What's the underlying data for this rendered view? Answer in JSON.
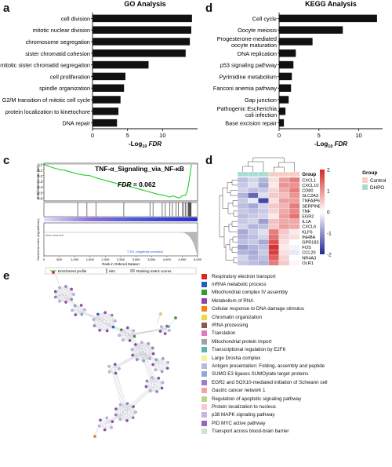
{
  "panels": {
    "a": {
      "letter": "a",
      "title": "GO Analysis",
      "xlabel_prefix": "-Log",
      "xlabel_sub": "10",
      "xlabel_suffix": "FDR",
      "chart_data": {
        "type": "bar",
        "orientation": "horizontal",
        "categories": [
          "cell division",
          "mitotic nuclear division",
          "chromosome segregation",
          "sister chromatid cohesion",
          "mitotic sister chromatid segregation",
          "cell proliferation",
          "spindle organization",
          "G2/M transition of mitotic cell cycle",
          "protein localization to kinetochore",
          "DNA repair"
        ],
        "values": [
          14.2,
          14.1,
          13.9,
          13.3,
          8.0,
          4.7,
          4.5,
          4.0,
          3.7,
          3.5
        ],
        "xlim": [
          0,
          15
        ],
        "xticks": [
          0,
          5,
          10
        ],
        "color": "#111111"
      }
    },
    "d": {
      "letter": "d",
      "title": "KEGG Analysis",
      "xlabel_prefix": "-Log",
      "xlabel_sub": "10",
      "xlabel_suffix": "FDR",
      "chart_data": {
        "type": "bar",
        "orientation": "horizontal",
        "categories": [
          "Cell cycle",
          "Oocyte meiosis",
          "Progesterone-mediated oocyte maturation",
          "DNA replication",
          "p53 signaling pathway",
          "Pyrimidine metabolism",
          "Fanconi anemia pathway",
          "Gap junction",
          "Pathogenic Escherichia coli infection",
          "Base excision repair"
        ],
        "category_lines": [
          [
            "Cell cycle"
          ],
          [
            "Oocyte meiosis"
          ],
          [
            "Progesterone-mediated",
            "oocyte maturation"
          ],
          [
            "DNA replication"
          ],
          [
            "p53 signaling pathway"
          ],
          [
            "Pyrimidine metabolism"
          ],
          [
            "Fanconi anemia pathway"
          ],
          [
            "Gap junction"
          ],
          [
            "Pathogenic Escherichia",
            "coli infection"
          ],
          [
            "Base excision repair"
          ]
        ],
        "values": [
          12.3,
          8.0,
          4.2,
          2.1,
          1.8,
          1.6,
          1.5,
          1.2,
          0.8,
          0.6
        ],
        "xlim": [
          0,
          13
        ],
        "xticks": [
          0,
          5,
          10
        ],
        "color": "#111111"
      }
    },
    "c": {
      "letter": "c",
      "title": "TNF-α_Signaling_via_NF-κB",
      "fdr_label": "FDR",
      "fdr_value": "= 0.062",
      "ylabel": "Enrichment score (ES)",
      "ylabel2": "Ranked list metric (Signal2Noise)",
      "xlabel": "Rank in Ordered Dataset",
      "pos_label": "'Ctrl' (positively correlated)",
      "neg_label": "'CTRL' (negatively correlated)",
      "zero_cross": "Zero cross at 6",
      "legend": [
        "Enrichment profile",
        "Hits",
        "Ranking metric scores"
      ],
      "chart_data": {
        "type": "line",
        "yticks": [
          "0.0",
          "-0.1",
          "-0.2",
          "-0.3",
          "-0.4",
          "-0.5",
          "-0.6"
        ],
        "xticks": [
          "0",
          "500",
          "1,000",
          "1,500",
          "2,000",
          "2,500",
          "3,000",
          "3,500",
          "4,000",
          "4,500",
          "5,000"
        ],
        "ylim": [
          -0.65,
          0.02
        ],
        "xlim": [
          0,
          5000
        ],
        "x": [
          0,
          150,
          300,
          500,
          700,
          900,
          1100,
          1300,
          1500,
          1700,
          1900,
          2100,
          2300,
          2500,
          2700,
          2900,
          3100,
          3300,
          3500,
          3700,
          3900,
          4100,
          4200,
          4300,
          4400,
          4500,
          4600,
          4650,
          4700,
          4750,
          4800
        ],
        "y": [
          0,
          -0.03,
          -0.06,
          -0.09,
          -0.11,
          -0.14,
          -0.17,
          -0.19,
          -0.2,
          -0.24,
          -0.27,
          -0.3,
          -0.33,
          -0.36,
          -0.38,
          -0.41,
          -0.44,
          -0.47,
          -0.5,
          -0.53,
          -0.55,
          -0.58,
          -0.56,
          -0.58,
          -0.6,
          -0.56,
          -0.55,
          -0.5,
          -0.38,
          -0.2,
          0.0
        ],
        "hits": [
          1100,
          1400,
          1700,
          2600,
          3450,
          3550,
          3850,
          3950,
          4100,
          4180,
          4300,
          4380,
          4500,
          4550,
          4600,
          4650,
          4700,
          4720,
          4740,
          4760,
          4780,
          4790
        ],
        "curve_color": "#22cc22"
      }
    },
    "d2": {
      "letter": "d",
      "legend_title": "Group",
      "col_group_label": "Group",
      "groups": [
        {
          "name": "Control",
          "color": "#f5cfc4"
        },
        {
          "name": "DHPO",
          "color": "#a8ddd4"
        }
      ],
      "chart_data": {
        "type": "heatmap",
        "rows": [
          "CXCL1",
          "CXCL10",
          "CD80",
          "SLC2A3",
          "TNFAIP6",
          "SERPINB2",
          "TNF",
          "EGR2",
          "IL1A",
          "CXCL6",
          "KLF6",
          "INHBA",
          "GPR183",
          "FOS",
          "CCL20",
          "NR4A3",
          "OLR1"
        ],
        "col_groups": [
          "DHPO",
          "DHPO",
          "DHPO",
          "Control",
          "Control",
          "Control"
        ],
        "values": [
          [
            -0.6,
            -0.4,
            -0.7,
            0.3,
            0.9,
            1.2
          ],
          [
            -0.5,
            -0.3,
            -0.8,
            0.2,
            1.0,
            1.0
          ],
          [
            -0.4,
            -0.6,
            -0.5,
            0.4,
            0.8,
            1.2
          ],
          [
            -0.7,
            -1.4,
            -0.3,
            0.5,
            0.6,
            1.0
          ],
          [
            -0.5,
            -0.2,
            -1.7,
            0.3,
            0.9,
            0.9
          ],
          [
            -0.6,
            -0.8,
            -0.4,
            0.5,
            0.7,
            1.2
          ],
          [
            -0.5,
            -0.6,
            -0.5,
            0.4,
            0.8,
            1.1
          ],
          [
            -0.6,
            -0.5,
            -0.4,
            0.2,
            0.9,
            1.3
          ],
          [
            -0.5,
            -0.4,
            -0.9,
            0.6,
            0.8,
            0.8
          ],
          [
            -0.4,
            -0.7,
            -0.6,
            0.5,
            0.9,
            0.8
          ],
          [
            -0.8,
            -0.5,
            -0.3,
            1.2,
            0.5,
            0.2
          ],
          [
            -0.7,
            -0.6,
            -0.4,
            1.3,
            0.4,
            0.3
          ],
          [
            -0.6,
            -0.5,
            -0.8,
            1.6,
            0.3,
            0.0
          ],
          [
            -0.9,
            -0.7,
            -0.6,
            1.9,
            0.2,
            -0.1
          ],
          [
            -0.7,
            -0.8,
            -0.5,
            1.8,
            0.3,
            -0.2
          ],
          [
            -0.4,
            -0.7,
            -0.6,
            1.5,
            0.4,
            0.0
          ],
          [
            -0.5,
            -0.6,
            -0.7,
            1.2,
            0.5,
            0.1
          ]
        ],
        "scale_ticks": [
          2,
          1,
          0,
          -1,
          -2
        ],
        "zlim": [
          -2,
          2
        ]
      }
    },
    "e": {
      "letter": "e",
      "legend": [
        {
          "label": "Respiratory electron transport",
          "color": "#d62728"
        },
        {
          "label": "mRNA metabolic process",
          "color": "#1f5fbf"
        },
        {
          "label": "Mitochondrial complex IV assembly",
          "color": "#2ca02c"
        },
        {
          "label": "Metabolism of RNA",
          "color": "#8e44ad"
        },
        {
          "label": "Cellular response to DNA damage stimulus",
          "color": "#ff7f0e"
        },
        {
          "label": "Chromatin organization",
          "color": "#e8d84a"
        },
        {
          "label": "rRNA processing",
          "color": "#8c564b"
        },
        {
          "label": "Translation",
          "color": "#e377c2"
        },
        {
          "label": "Mitochondrial protein import",
          "color": "#a0a0a0"
        },
        {
          "label": "Transcriptional regulation by E2F6",
          "color": "#5fb3b3"
        },
        {
          "label": "Large Drosha complex",
          "color": "#f4f1a0"
        },
        {
          "label": "Antigen presentation: Folding, assembly and peptide",
          "color": "#b8b8e8"
        },
        {
          "label": "SUMO E3 ligases SUMOylate target proteins",
          "color": "#8fa8d8"
        },
        {
          "label": "EGR2 and SOX10-mediated initiation of Schwann cell",
          "color": "#9b7fc7"
        },
        {
          "label": "Gastric cancer network 1",
          "color": "#f4a3a3"
        },
        {
          "label": "Regulation of apoptotic signaling pathway",
          "color": "#b5d98a"
        },
        {
          "label": "Protein localization to nucleus",
          "color": "#f7c6d9"
        },
        {
          "label": "p38 MAPK signaling pathway",
          "color": "#c8b4e0"
        },
        {
          "label": "PID MYC active pathway",
          "color": "#9467bd"
        },
        {
          "label": "Transport across blood-brain barrier",
          "color": "#c7e8c7"
        }
      ]
    }
  }
}
